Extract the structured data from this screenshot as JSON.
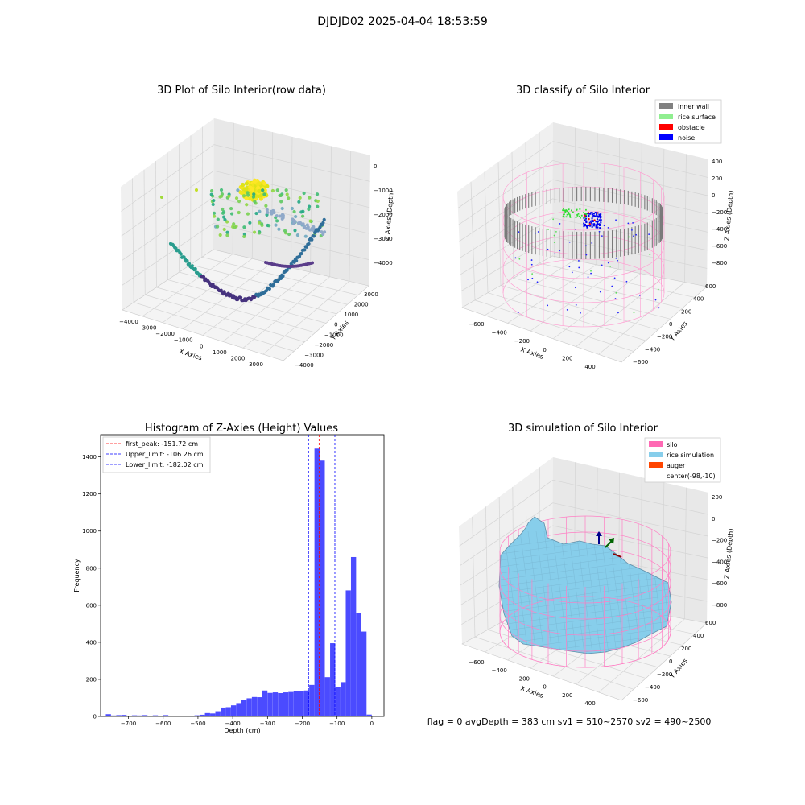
{
  "figure": {
    "suptitle": "DJDJD02 2025-04-04 18:53:59",
    "footer": "flag = 0     avgDepth = 383 cm  sv1 = 510~2570  sv2 = 490~2500"
  },
  "chart_data": [
    {
      "type": "scatter",
      "projection": "3d",
      "title": "3D Plot of Silo Interior(row data)",
      "xlabel": "X Axies",
      "ylabel": "Y Axies",
      "zlabel": "Z Axies (Depth)",
      "xticks": [
        "−4000",
        "−3000",
        "−2000",
        "−1000",
        "0",
        "1000",
        "2000",
        "3000"
      ],
      "yticks": [
        "3000",
        "2000",
        "1000",
        "0",
        "−1000",
        "−2000",
        "−3000",
        "−4000"
      ],
      "zticks": [
        "0",
        "−1000",
        "−2000",
        "−3000",
        "−4000"
      ],
      "xlim": [
        -4200,
        3600
      ],
      "ylim": [
        -4200,
        3600
      ],
      "zlim": [
        -4400,
        200
      ],
      "colormap": "viridis",
      "groups": [
        {
          "desc": "dense cluster near center",
          "x": -500,
          "y": 300,
          "z": -900,
          "color": "#e3e418"
        },
        {
          "desc": "upper ring / floor",
          "x": -700,
          "y": -300,
          "z": -2000,
          "color": "#5ec962"
        },
        {
          "desc": "outer wall arc",
          "x": 2500,
          "y": -2500,
          "z": -3800,
          "color": "#31688e"
        },
        {
          "desc": "lower wall arc",
          "x": -1500,
          "y": -2500,
          "z": -4000,
          "color": "#482878"
        }
      ]
    },
    {
      "type": "scatter",
      "projection": "3d",
      "title": "3D classify of Silo Interior",
      "xlabel": "X Axies",
      "ylabel": "Y Axies",
      "zlabel": "Z Axies (Depth)",
      "xticks": [
        "−600",
        "−400",
        "−200",
        "0",
        "200",
        "400"
      ],
      "yticks": [
        "600",
        "400",
        "200",
        "0",
        "−200",
        "−400",
        "−600"
      ],
      "zticks": [
        "400",
        "200",
        "0",
        "−200",
        "−400",
        "−600",
        "−800"
      ],
      "xlim": [
        -650,
        450
      ],
      "ylim": [
        -650,
        650
      ],
      "zlim": [
        -900,
        450
      ],
      "legend": [
        {
          "label": "inner wall",
          "color": "#808080"
        },
        {
          "label": "rice surface",
          "color": "#90ee90"
        },
        {
          "label": "obstacle",
          "color": "#ff0000"
        },
        {
          "label": "noise",
          "color": "#0000ff"
        }
      ],
      "legend_loc": "top-right"
    },
    {
      "type": "bar",
      "title": "Histogram of Z-Axies (Height) Values",
      "xlabel": "Depth (cm)",
      "ylabel": "Frequency",
      "xlim": [
        -780,
        35
      ],
      "ylim": [
        0,
        1520
      ],
      "xticks": [
        -700,
        -600,
        -500,
        -400,
        -300,
        -200,
        -100,
        0
      ],
      "yticks": [
        0,
        200,
        400,
        600,
        800,
        1000,
        1200,
        1400
      ],
      "bar_color": "#4b4bff",
      "bin_width": 15,
      "bin_starts": [
        -765,
        -750,
        -735,
        -720,
        -705,
        -690,
        -675,
        -660,
        -645,
        -630,
        -615,
        -600,
        -585,
        -570,
        -555,
        -540,
        -525,
        -510,
        -495,
        -480,
        -465,
        -450,
        -435,
        -420,
        -405,
        -390,
        -375,
        -360,
        -345,
        -330,
        -315,
        -300,
        -285,
        -270,
        -255,
        -240,
        -225,
        -210,
        -195,
        -180,
        -165,
        -150,
        -135,
        -120,
        -105,
        -90,
        -75,
        -60,
        -45,
        -30,
        -15
      ],
      "counts": [
        12,
        5,
        7,
        8,
        3,
        6,
        5,
        7,
        4,
        6,
        3,
        7,
        4,
        4,
        3,
        2,
        3,
        6,
        9,
        18,
        16,
        28,
        48,
        50,
        60,
        72,
        88,
        98,
        105,
        104,
        140,
        127,
        130,
        126,
        130,
        132,
        135,
        138,
        140,
        170,
        1445,
        1380,
        212,
        395,
        160,
        185,
        680,
        860,
        558,
        458,
        10
      ],
      "vlines": [
        {
          "label": "first_peak: -151.72 cm",
          "x": -151.72,
          "color": "#ff0000"
        },
        {
          "label": "Upper_limit: -106.26 cm",
          "x": -106.26,
          "color": "#0000ff"
        },
        {
          "label": "Lower_limit: -182.02 cm",
          "x": -182.02,
          "color": "#0000ff"
        }
      ],
      "legend_loc": "top-left"
    },
    {
      "type": "surface",
      "projection": "3d",
      "title": "3D simulation of Silo Interior",
      "xlabel": "X Axies",
      "ylabel": "Y Axies",
      "zlabel": "Z Axies (Depth)",
      "xticks": [
        "−600",
        "−400",
        "−200",
        "0",
        "200",
        "400"
      ],
      "yticks": [
        "600",
        "400",
        "200",
        "0",
        "−200",
        "−400",
        "−600"
      ],
      "zticks": [
        "200",
        "0",
        "−200",
        "−400",
        "−600",
        "−800"
      ],
      "xlim": [
        -650,
        450
      ],
      "ylim": [
        -650,
        650
      ],
      "zlim": [
        -900,
        300
      ],
      "legend": [
        {
          "label": "silo",
          "color": "#ff69b4"
        },
        {
          "label": "rice simulation",
          "color": "#87ceeb"
        },
        {
          "label": "auger",
          "color": "#ff4500"
        },
        {
          "label": "center(-98,-10)",
          "color": "none"
        }
      ],
      "legend_loc": "top-right"
    }
  ]
}
